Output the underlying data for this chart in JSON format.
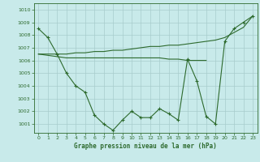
{
  "background_color": "#c8eaea",
  "grid_color": "#a8cccc",
  "line_color": "#2d6a2d",
  "xlabel": "Graphe pression niveau de la mer (hPa)",
  "xlim": [
    -0.5,
    23.5
  ],
  "ylim": [
    1000.3,
    1010.5
  ],
  "yticks": [
    1001,
    1002,
    1003,
    1004,
    1005,
    1006,
    1007,
    1008,
    1009,
    1010
  ],
  "xticks": [
    0,
    1,
    2,
    3,
    4,
    5,
    6,
    7,
    8,
    9,
    10,
    11,
    12,
    13,
    14,
    15,
    16,
    17,
    18,
    19,
    20,
    21,
    22,
    23
  ],
  "series_measured": [
    1008.5,
    1007.8,
    1006.5,
    1005.0,
    1004.0,
    1003.5,
    1001.7,
    1001.0,
    1000.5,
    1001.3,
    1002.0,
    1001.5,
    1001.5,
    1002.2,
    1001.8,
    1001.3,
    1006.1,
    1004.4,
    1001.6,
    1001.0,
    1007.5,
    1008.5,
    1009.0,
    1009.5
  ],
  "smooth_rising": [
    1006.5,
    1006.5,
    1006.5,
    1006.5,
    1006.6,
    1006.6,
    1006.7,
    1006.7,
    1006.8,
    1006.8,
    1006.9,
    1007.0,
    1007.1,
    1007.1,
    1007.2,
    1007.2,
    1007.3,
    1007.4,
    1007.5,
    1007.6,
    1007.8,
    1008.2,
    1008.6,
    1009.5
  ],
  "smooth_flat": [
    1006.5,
    1006.4,
    1006.3,
    1006.2,
    1006.2,
    1006.2,
    1006.2,
    1006.2,
    1006.2,
    1006.2,
    1006.2,
    1006.2,
    1006.2,
    1006.2,
    1006.1,
    1006.1,
    1006.0,
    1006.0,
    1006.0,
    null,
    null,
    null,
    null,
    null
  ]
}
